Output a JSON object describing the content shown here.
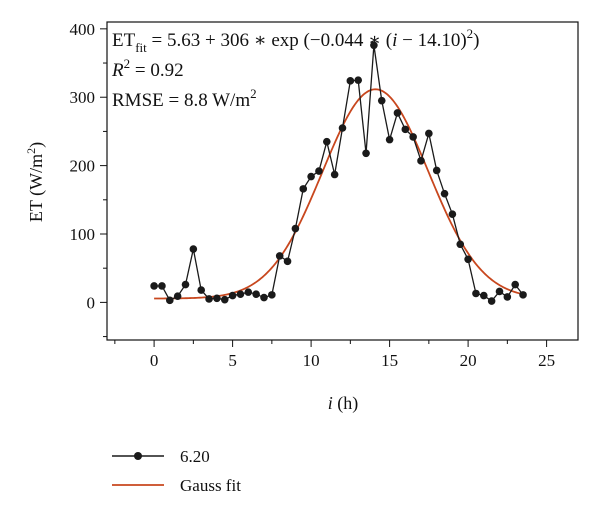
{
  "chart_data": {
    "type": "line",
    "xlabel_var": "i",
    "xlabel_unit": "(h)",
    "ylabel_main": "ET (W/m",
    "ylabel_sup": "2",
    "ylabel_close": ")",
    "xlim": [
      -3,
      27
    ],
    "ylim": [
      -55,
      410
    ],
    "xticks": [
      0,
      5,
      10,
      15,
      20,
      25
    ],
    "yticks": [
      0,
      100,
      200,
      300,
      400
    ],
    "grid": false,
    "legend_position": "bottom-left, below plot",
    "annotations": {
      "eq_lhs": "ET",
      "eq_sub": "fit",
      "eq_rhs_a": " = 5.63 + 306 ∗ exp (−0.044 ∗ (",
      "eq_i": "i",
      "eq_rhs_b": " − 14.10)",
      "eq_sup": "2",
      "eq_close": ")",
      "r2_var": "R",
      "r2_sup": "2",
      "r2_value": " = 0.92",
      "rmse_text": "RMSE = 8.8 W/m",
      "rmse_sup": "2"
    },
    "series": [
      {
        "name": "6.20",
        "color": "#1a1a1a",
        "marker": "circle",
        "x": [
          0,
          0.5,
          1,
          1.5,
          2,
          2.5,
          3,
          3.5,
          4,
          4.5,
          5,
          5.5,
          6,
          6.5,
          7,
          7.5,
          8,
          8.5,
          9,
          9.5,
          10,
          10.5,
          11,
          11.5,
          12,
          12.5,
          13,
          13.5,
          14,
          14.5,
          15,
          15.5,
          16,
          16.5,
          17,
          17.5,
          18,
          18.5,
          19,
          19.5,
          20,
          20.5,
          21,
          21.5,
          22,
          22.5,
          23,
          23.5
        ],
        "y": [
          24,
          24,
          3,
          9,
          26,
          78,
          18,
          5,
          6,
          4,
          10,
          12,
          15,
          12,
          7,
          11,
          68,
          60,
          108,
          166,
          184,
          192,
          235,
          187,
          255,
          324,
          325,
          218,
          376,
          295,
          238,
          277,
          253,
          242,
          207,
          247,
          193,
          159,
          129,
          85,
          63,
          13,
          10,
          2,
          16,
          8,
          26,
          11
        ]
      },
      {
        "name": "Gauss fit",
        "color": "#c8471e",
        "marker": "none",
        "model": {
          "a": 5.63,
          "b": 306,
          "c": 0.044,
          "mu": 14.1,
          "x_from": 0,
          "x_to": 23.5
        }
      }
    ]
  }
}
